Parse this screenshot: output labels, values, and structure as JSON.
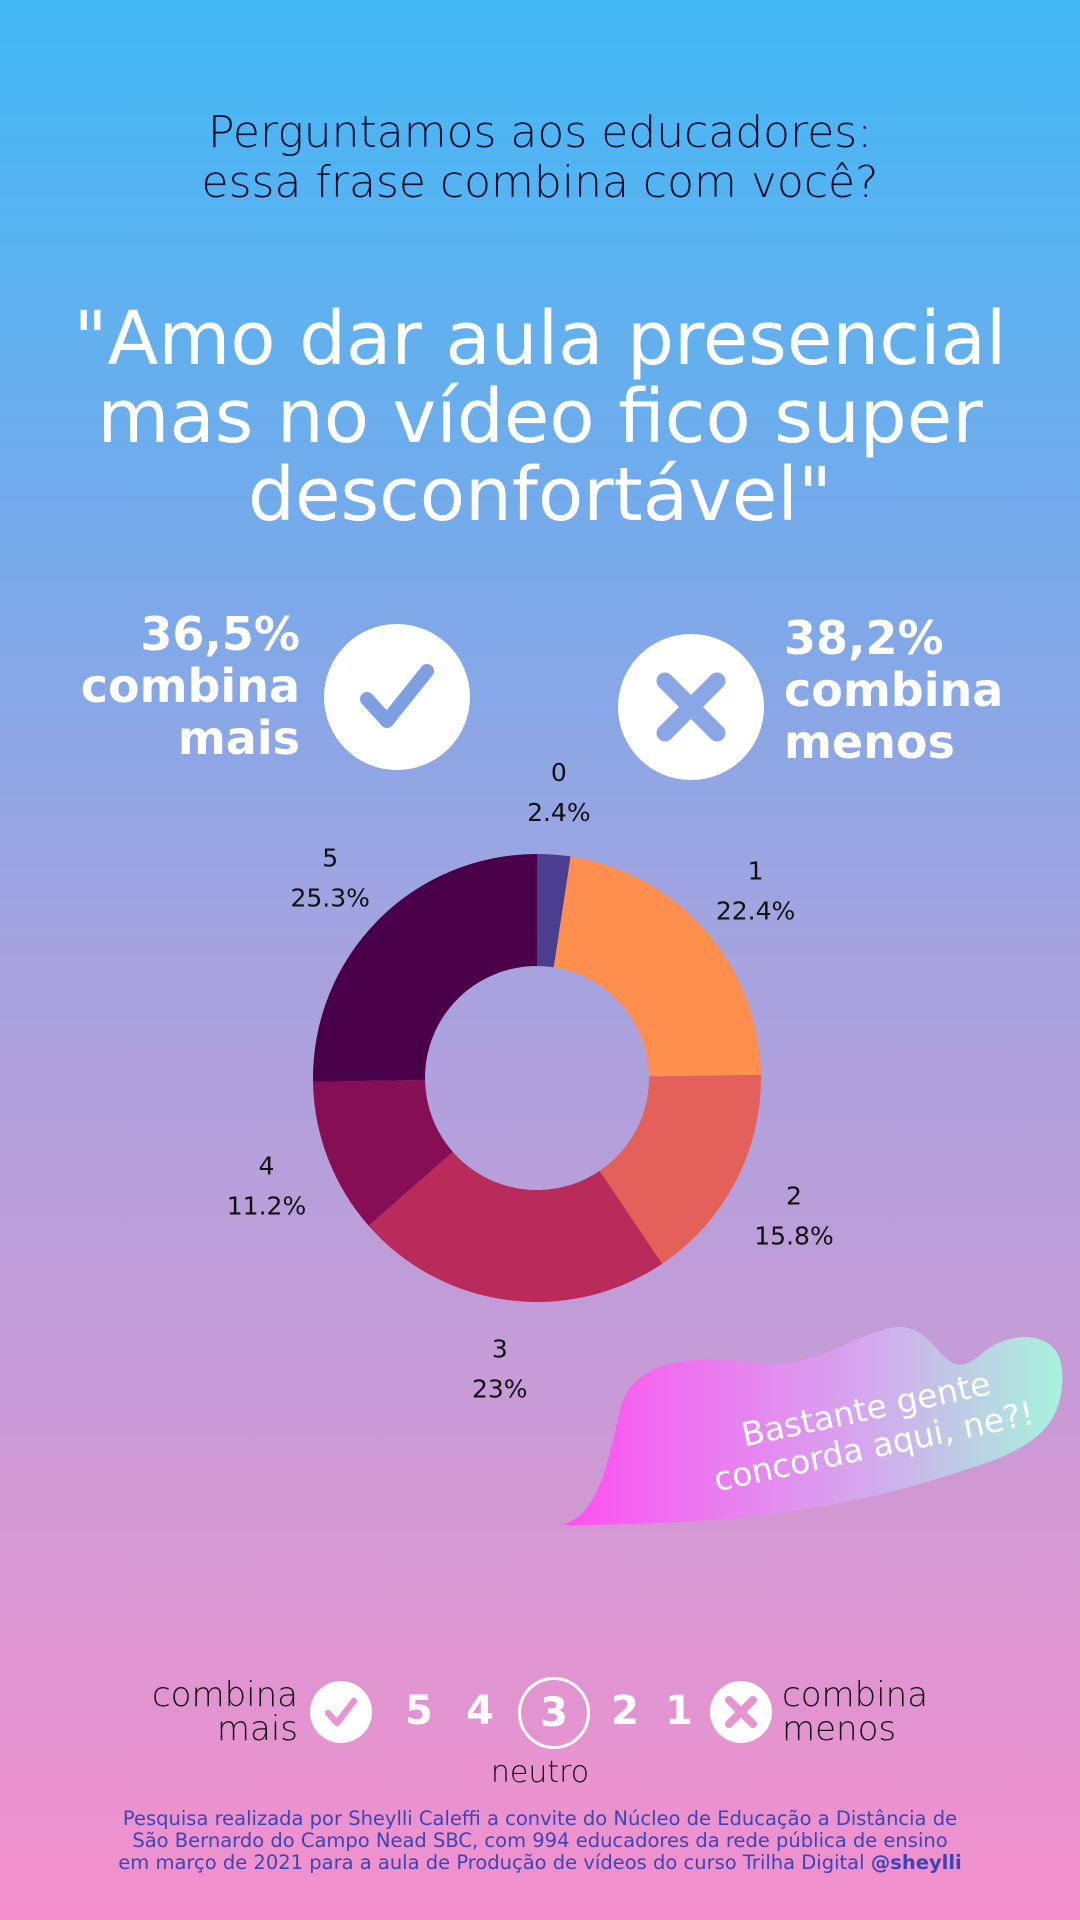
{
  "question": {
    "line1": "Perguntamos aos educadores:",
    "line2": "essa frase combina com você?"
  },
  "quote": {
    "line1": "\"Amo dar aula presencial",
    "line2": "mas no vídeo fico super",
    "line3": "desconfortável\""
  },
  "stat_left": {
    "percent": "36,5%",
    "line1": "combina",
    "line2": "mais",
    "icon": "check-icon"
  },
  "stat_right": {
    "percent": "38,2%",
    "line1": "combina",
    "line2": "menos",
    "icon": "x-icon"
  },
  "chart_data": {
    "type": "pie",
    "donut": true,
    "categories": [
      "0",
      "1",
      "2",
      "3",
      "4",
      "5"
    ],
    "values": [
      2.4,
      22.4,
      15.8,
      23,
      11.2,
      25.3
    ],
    "value_labels": [
      "2.4%",
      "22.4%",
      "15.8%",
      "23%",
      "11.2%",
      "25.3%"
    ],
    "colors": [
      "#4b3d8f",
      "#ff8f4f",
      "#e4605a",
      "#b92b5a",
      "#850e55",
      "#4a0049"
    ],
    "start": "top, clockwise",
    "legend": "labels outside slices"
  },
  "bubble": {
    "line1": "Bastante gente",
    "line2": "concorda aqui, ne?!",
    "colors": [
      "#ff4ff1",
      "#d6a6ee",
      "#a6f3dd"
    ]
  },
  "scale": {
    "left_line1": "combina",
    "left_line2": "mais",
    "numbers": [
      "5",
      "4",
      "3",
      "2",
      "1"
    ],
    "right_line1": "combina",
    "right_line2": "menos",
    "neutral": "neutro"
  },
  "footer": {
    "line1": "Pesquisa realizada por Sheylli Caleffi a convite do Núcleo de Educação a Distância de",
    "line2": "São Bernardo do Campo Nead SBC, com 994 educadores da rede pública de ensino",
    "line3": "em março de 2021 para a aula de Produção de vídeos do curso Trilha Digital",
    "handle": "@sheylli"
  }
}
